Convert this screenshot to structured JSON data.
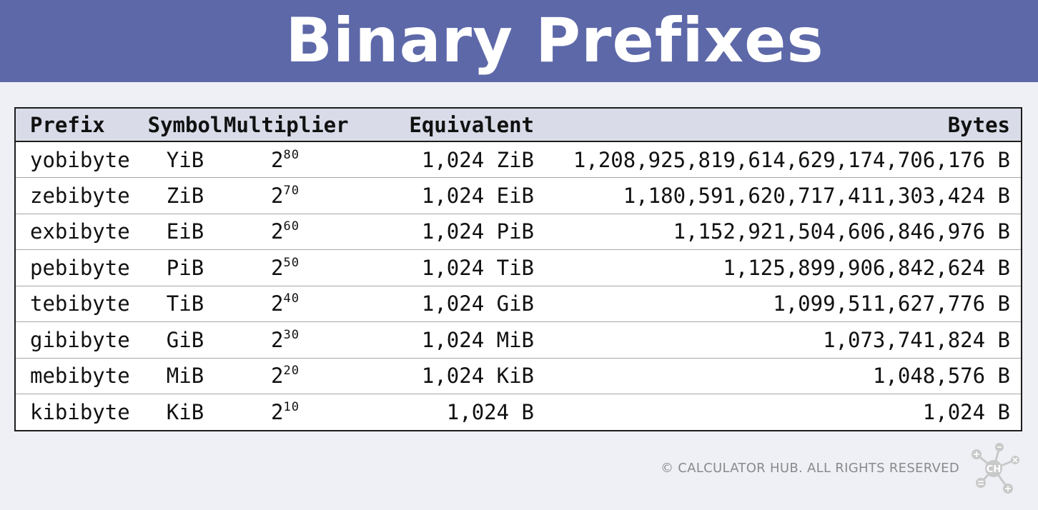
{
  "title": "Binary Prefixes",
  "table": {
    "headers": {
      "prefix": "Prefix",
      "symbol": "Symbol",
      "multiplier": "Multiplier",
      "equivalent": "Equivalent",
      "bytes": "Bytes"
    },
    "rows": [
      {
        "prefix": "yobibyte",
        "symbol": "YiB",
        "base": "2",
        "exp": "80",
        "equivalent": "1,024 ZiB",
        "bytes": "1,208,925,819,614,629,174,706,176 B"
      },
      {
        "prefix": "zebibyte",
        "symbol": "ZiB",
        "base": "2",
        "exp": "70",
        "equivalent": "1,024 EiB",
        "bytes": "1,180,591,620,717,411,303,424 B"
      },
      {
        "prefix": "exbibyte",
        "symbol": "EiB",
        "base": "2",
        "exp": "60",
        "equivalent": "1,024 PiB",
        "bytes": "1,152,921,504,606,846,976 B"
      },
      {
        "prefix": "pebibyte",
        "symbol": "PiB",
        "base": "2",
        "exp": "50",
        "equivalent": "1,024 TiB",
        "bytes": "1,125,899,906,842,624 B"
      },
      {
        "prefix": "tebibyte",
        "symbol": "TiB",
        "base": "2",
        "exp": "40",
        "equivalent": "1,024 GiB",
        "bytes": "1,099,511,627,776 B"
      },
      {
        "prefix": "gibibyte",
        "symbol": "GiB",
        "base": "2",
        "exp": "30",
        "equivalent": "1,024 MiB",
        "bytes": "1,073,741,824 B"
      },
      {
        "prefix": "mebibyte",
        "symbol": "MiB",
        "base": "2",
        "exp": "20",
        "equivalent": "1,024 KiB",
        "bytes": "1,048,576 B"
      },
      {
        "prefix": "kibibyte",
        "symbol": "KiB",
        "base": "2",
        "exp": "10",
        "equivalent": "1,024 B",
        "bytes": "1,024 B"
      }
    ]
  },
  "footer": {
    "copyright": "© CALCULATOR HUB. ALL RIGHTS RESERVED",
    "logo_text": "CH",
    "logo_icon": "calculator-hub-molecule-logo-icon"
  },
  "colors": {
    "banner": "#5d68a8",
    "header_row": "#d9dce8",
    "background": "#eef0f6"
  }
}
